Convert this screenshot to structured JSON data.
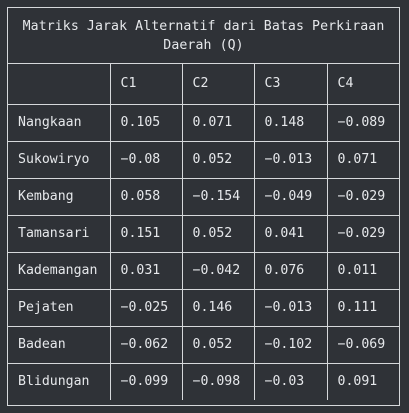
{
  "table": {
    "title": "Matriks Jarak Alternatif dari Batas Perkiraan Daerah (Q)",
    "columns": [
      "",
      "C1",
      "C2",
      "C3",
      "C4"
    ],
    "rows": [
      {
        "name": "Nangkaan",
        "values": [
          "0.105",
          "0.071",
          "0.148",
          "−0.089"
        ]
      },
      {
        "name": "Sukowiryo",
        "values": [
          "−0.08",
          "0.052",
          "−0.013",
          "0.071"
        ]
      },
      {
        "name": "Kembang",
        "values": [
          "0.058",
          "−0.154",
          "−0.049",
          "−0.029"
        ]
      },
      {
        "name": "Tamansari",
        "values": [
          "0.151",
          "0.052",
          "0.041",
          "−0.029"
        ]
      },
      {
        "name": "Kademangan",
        "values": [
          "0.031",
          "−0.042",
          "0.076",
          "0.011"
        ]
      },
      {
        "name": "Pejaten",
        "values": [
          "−0.025",
          "0.146",
          "−0.013",
          "0.111"
        ]
      },
      {
        "name": "Badean",
        "values": [
          "−0.062",
          "0.052",
          "−0.102",
          "−0.069"
        ]
      },
      {
        "name": "Blidungan",
        "values": [
          "−0.099",
          "−0.098",
          "−0.03",
          "0.091"
        ]
      }
    ]
  }
}
